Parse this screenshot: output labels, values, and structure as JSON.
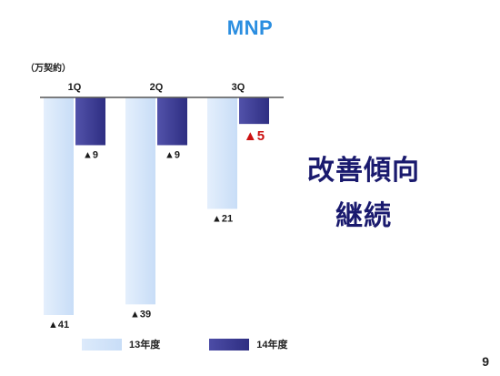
{
  "title": "MNP",
  "unit_label": "（万契約）",
  "message": {
    "line1": "改善傾向",
    "line2": "継続"
  },
  "page_number": "9",
  "colors": {
    "title": "#2b8ee0",
    "message": "#1a1a6e",
    "series_13": "#c8ddf7",
    "series_14": "#2e2e82",
    "label_default": "#1a1a1a",
    "label_highlight": "#cc1111",
    "axis": "#555555"
  },
  "chart_data": {
    "type": "bar",
    "categories": [
      "1Q",
      "2Q",
      "3Q"
    ],
    "series": [
      {
        "name": "13年度",
        "values": [
          -41,
          -39,
          -21
        ],
        "labels": [
          "▲41",
          "▲39",
          "▲21"
        ],
        "highlight": [
          false,
          false,
          false
        ]
      },
      {
        "name": "14年度",
        "values": [
          -9,
          -9,
          -5
        ],
        "labels": [
          "▲9",
          "▲9",
          "▲5"
        ],
        "highlight": [
          false,
          false,
          true
        ]
      }
    ],
    "ylim": [
      -41,
      0
    ],
    "legend_position": "bottom",
    "grid": false
  }
}
